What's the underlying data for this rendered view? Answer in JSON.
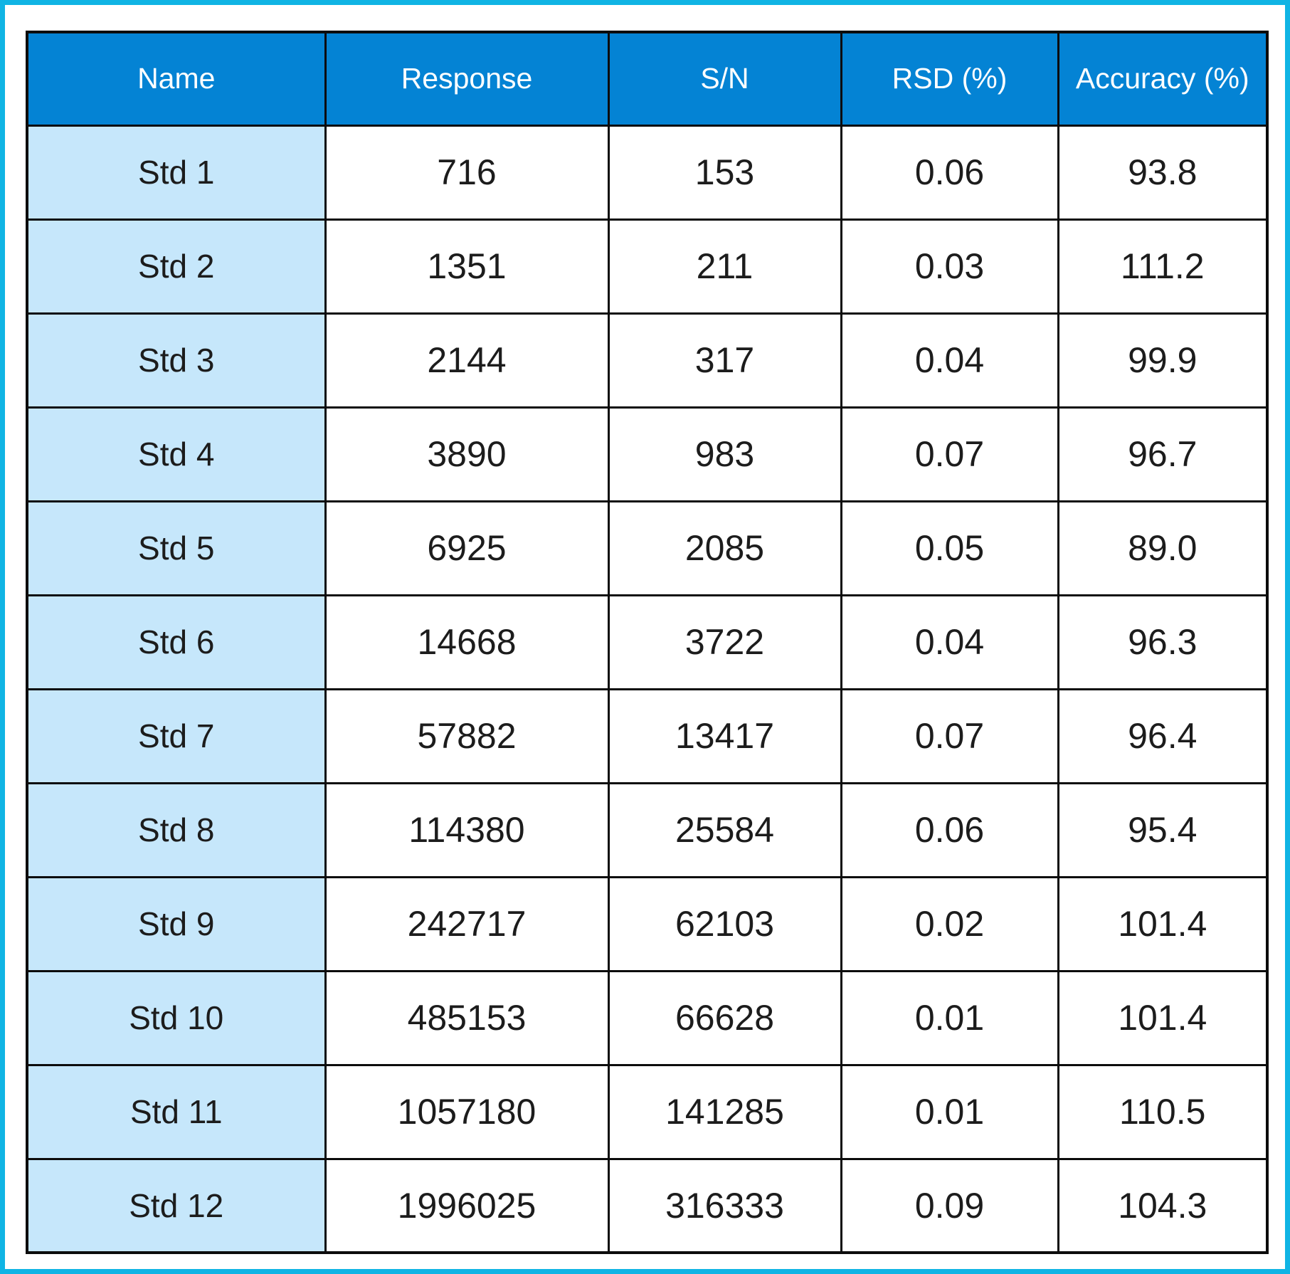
{
  "colors": {
    "outer_border": "#10b4e4",
    "header_background": "#0483d4",
    "header_text": "#ffffff",
    "name_column_background": "#c6e7fb",
    "cell_background": "#ffffff",
    "grid_lines": "#0c0c0c"
  },
  "chart_data": {
    "type": "table",
    "columns": [
      "Name",
      "Response",
      "S/N",
      "RSD (%)",
      "Accuracy (%)"
    ],
    "rows": [
      [
        "Std 1",
        "716",
        "153",
        "0.06",
        "93.8"
      ],
      [
        "Std 2",
        "1351",
        "211",
        "0.03",
        "111.2"
      ],
      [
        "Std 3",
        "2144",
        "317",
        "0.04",
        "99.9"
      ],
      [
        "Std 4",
        "3890",
        "983",
        "0.07",
        "96.7"
      ],
      [
        "Std 5",
        "6925",
        "2085",
        "0.05",
        "89.0"
      ],
      [
        "Std 6",
        "14668",
        "3722",
        "0.04",
        "96.3"
      ],
      [
        "Std 7",
        "57882",
        "13417",
        "0.07",
        "96.4"
      ],
      [
        "Std 8",
        "114380",
        "25584",
        "0.06",
        "95.4"
      ],
      [
        "Std 9",
        "242717",
        "62103",
        "0.02",
        "101.4"
      ],
      [
        "Std 10",
        "485153",
        "66628",
        "0.01",
        "101.4"
      ],
      [
        "Std 11",
        "1057180",
        "141285",
        "0.01",
        "110.5"
      ],
      [
        "Std 12",
        "1996025",
        "316333",
        "0.09",
        "104.3"
      ]
    ]
  }
}
